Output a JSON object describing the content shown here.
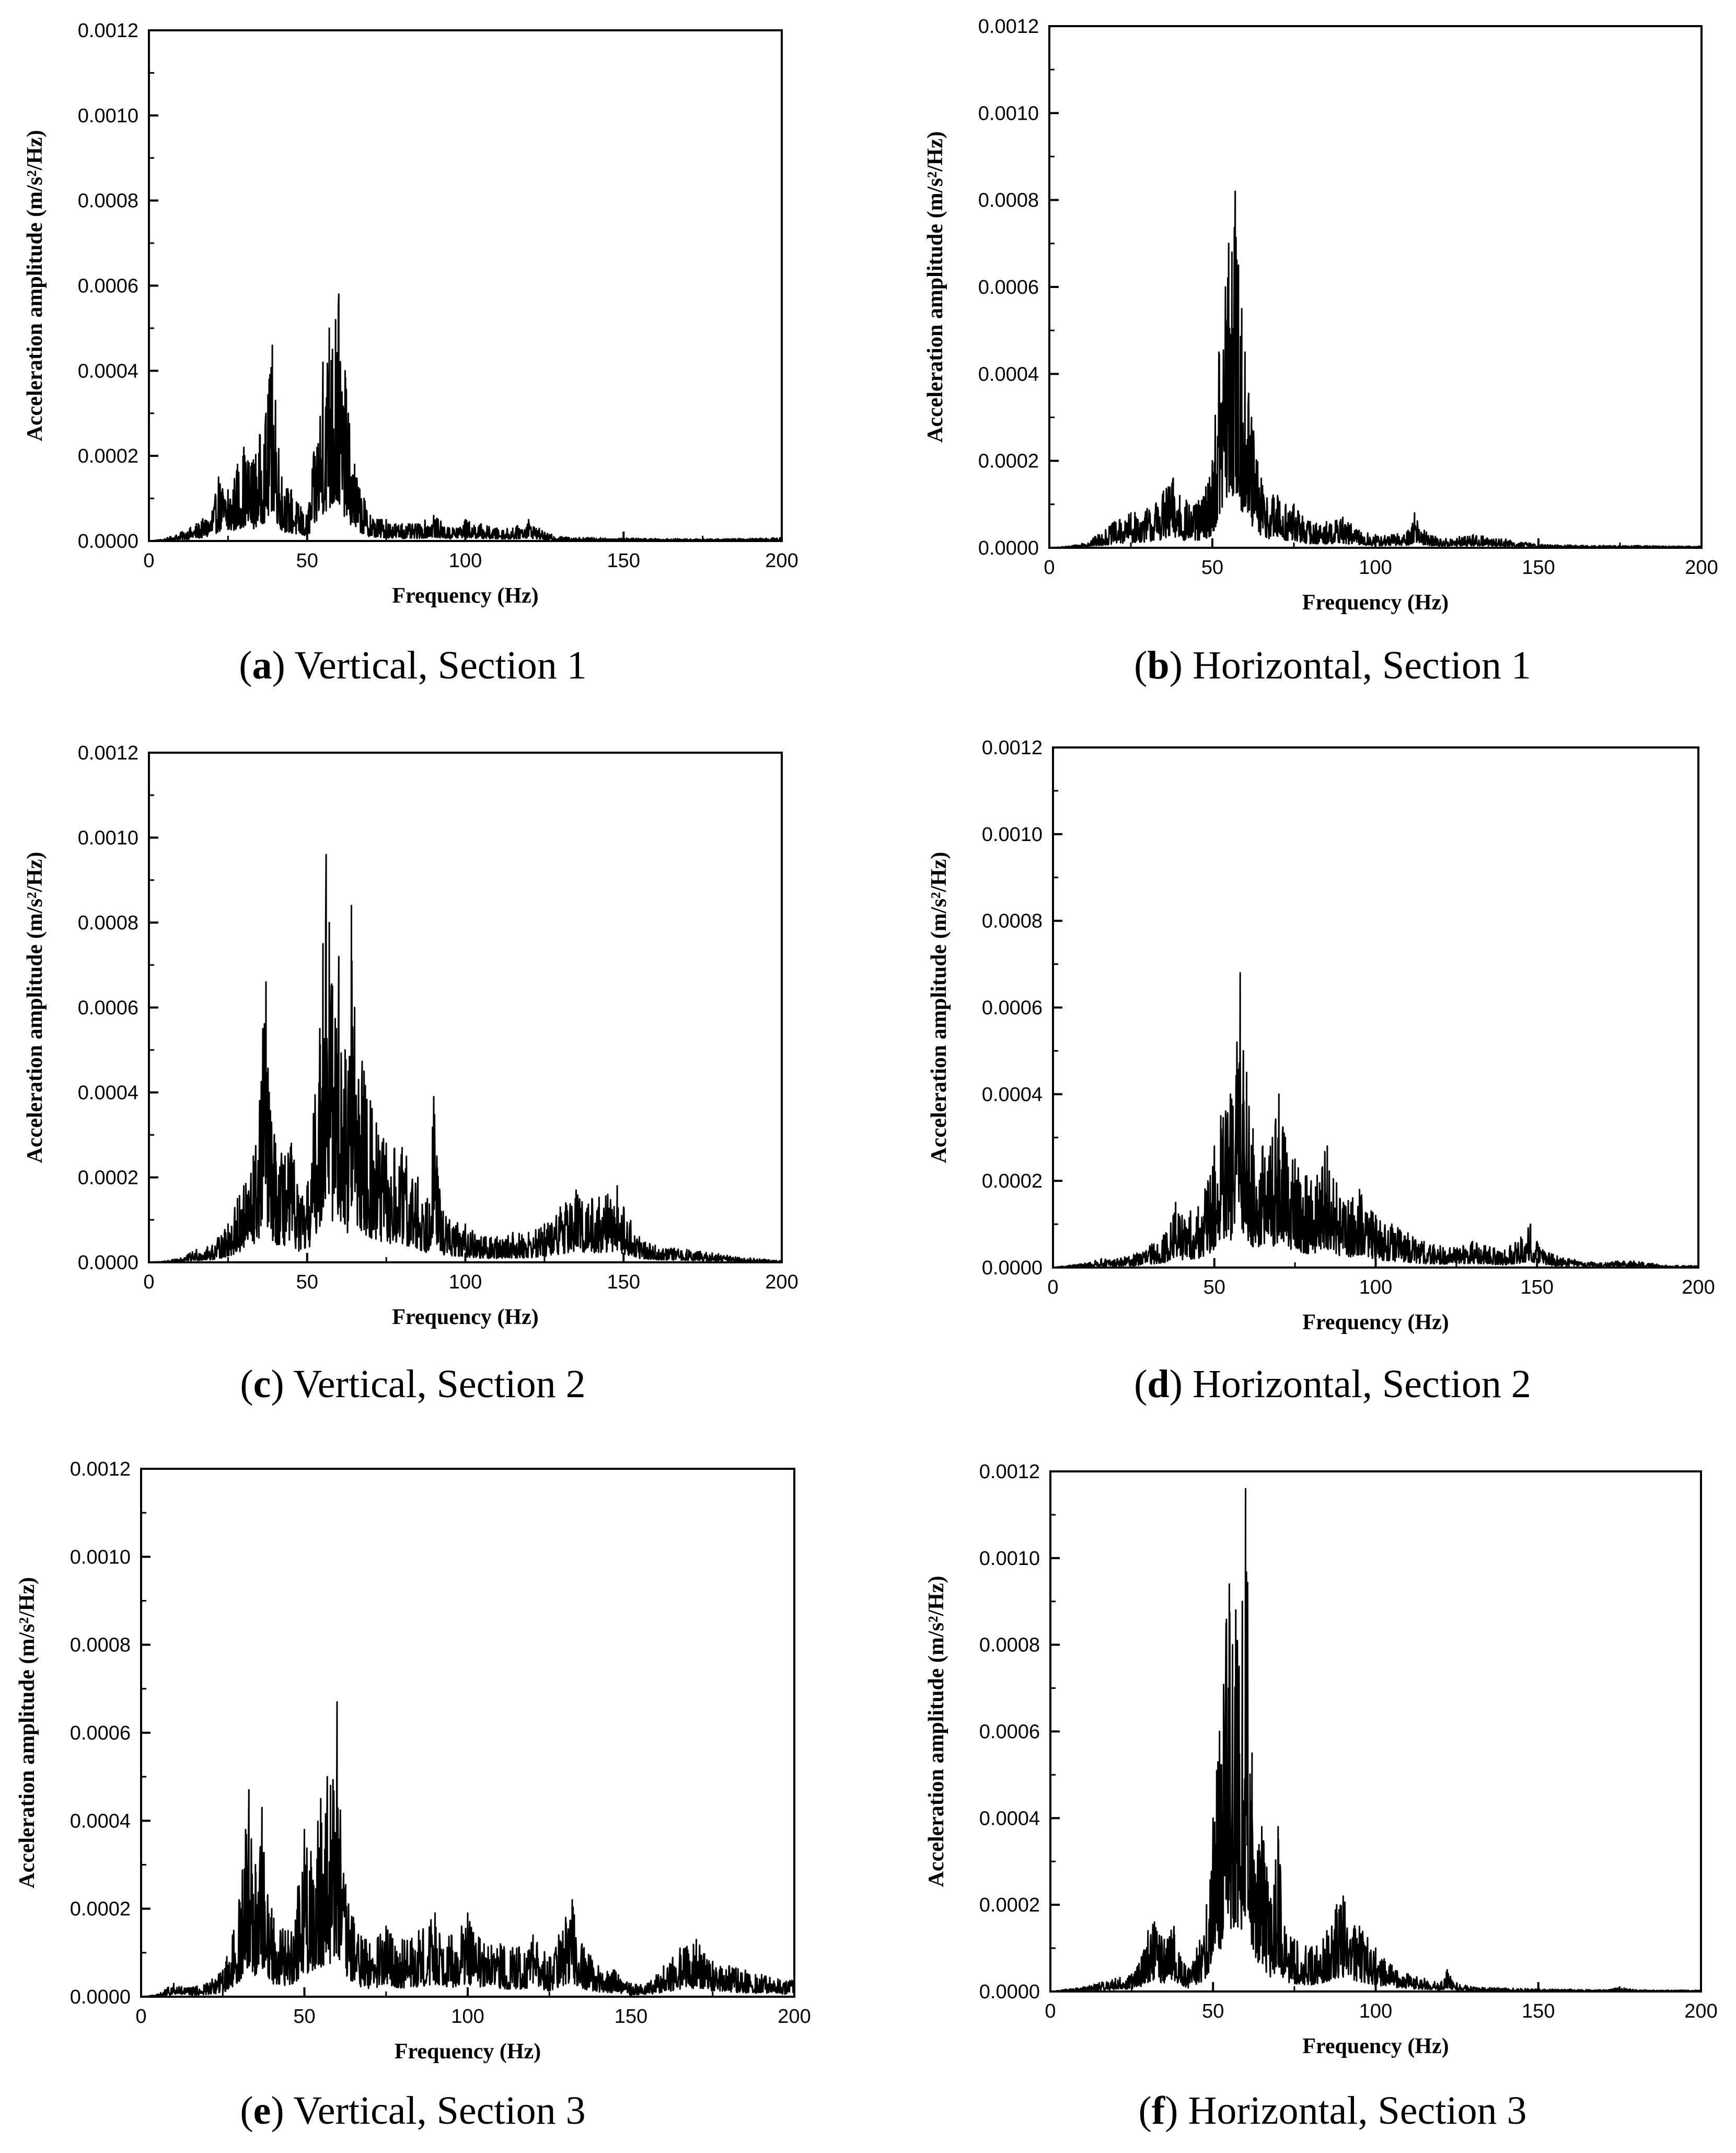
{
  "figure": {
    "panels": [
      {
        "id": "a",
        "letter": "a",
        "caption": "Vertical, Section 1",
        "xlabel": "Frequency (Hz)",
        "ylabel": "Acceleration amplitude (m/s²/Hz)",
        "xticks": [
          "0",
          "50",
          "100",
          "150",
          "200"
        ],
        "yticks": [
          "0.0000",
          "0.0002",
          "0.0004",
          "0.0006",
          "0.0008",
          "0.0010",
          "0.0012"
        ]
      },
      {
        "id": "b",
        "letter": "b",
        "caption": "Horizontal, Section 1",
        "xlabel": "Frequency (Hz)",
        "ylabel": "Acceleration amplitude (m/s²/Hz)",
        "xticks": [
          "0",
          "50",
          "100",
          "150",
          "200"
        ],
        "yticks": [
          "0.0000",
          "0.0002",
          "0.0004",
          "0.0006",
          "0.0008",
          "0.0010",
          "0.0012"
        ]
      },
      {
        "id": "c",
        "letter": "c",
        "caption": "Vertical, Section 2",
        "xlabel": "Frequency (Hz)",
        "ylabel": "Acceleration amplitude (m/s²/Hz)",
        "xticks": [
          "0",
          "50",
          "100",
          "150",
          "200"
        ],
        "yticks": [
          "0.0000",
          "0.0002",
          "0.0004",
          "0.0006",
          "0.0008",
          "0.0010",
          "0.0012"
        ]
      },
      {
        "id": "d",
        "letter": "d",
        "caption": "Horizontal, Section 2",
        "xlabel": "Frequency (Hz)",
        "ylabel": "Acceleration amplitude (m/s²/Hz)",
        "xticks": [
          "0",
          "50",
          "100",
          "150",
          "200"
        ],
        "yticks": [
          "0.0000",
          "0.0002",
          "0.0004",
          "0.0006",
          "0.0008",
          "0.0010",
          "0.0012"
        ]
      },
      {
        "id": "e",
        "letter": "e",
        "caption": "Vertical, Section 3",
        "xlabel": "Frequency (Hz)",
        "ylabel": "Acceleration amplitude (m/s²/Hz)",
        "xticks": [
          "0",
          "50",
          "100",
          "150",
          "200"
        ],
        "yticks": [
          "0.0000",
          "0.0002",
          "0.0004",
          "0.0006",
          "0.0008",
          "0.0010",
          "0.0012"
        ]
      },
      {
        "id": "f",
        "letter": "f",
        "caption": "Horizontal, Section 3",
        "xlabel": "Frequency (Hz)",
        "ylabel": "Acceleration amplitude (m/s²/Hz)",
        "xticks": [
          "0",
          "50",
          "100",
          "150",
          "200"
        ],
        "yticks": [
          "0.0000",
          "0.0002",
          "0.0004",
          "0.0006",
          "0.0008",
          "0.0010",
          "0.0012"
        ]
      }
    ]
  },
  "chart_data": [
    {
      "panel": "a",
      "type": "line",
      "xlabel": "Frequency (Hz)",
      "ylabel": "Acceleration amplitude (m/s²/Hz)",
      "xlim": [
        0,
        200
      ],
      "ylim": [
        0,
        0.0012
      ],
      "grid": false,
      "line_color": "#000000",
      "x": [
        0,
        5,
        10,
        15,
        20,
        22,
        25,
        28,
        30,
        33,
        35,
        37,
        38,
        39,
        40,
        42,
        45,
        48,
        50,
        52,
        55,
        57,
        58,
        59,
        60,
        61,
        62,
        63,
        65,
        68,
        70,
        75,
        80,
        85,
        90,
        95,
        100,
        105,
        110,
        115,
        120,
        125,
        130,
        140,
        150,
        160,
        170,
        180,
        190,
        200
      ],
      "y": [
        0,
        5e-06,
        2e-05,
        4e-05,
        7e-05,
        0.00015,
        0.00012,
        0.00018,
        0.00022,
        0.00019,
        0.00025,
        0.0003,
        0.00038,
        0.00046,
        0.00033,
        0.00015,
        0.00012,
        8e-05,
        6e-05,
        0.0002,
        0.00042,
        0.0005,
        0.00045,
        0.00052,
        0.00058,
        0.00035,
        0.0004,
        0.0003,
        0.00018,
        0.0001,
        6e-05,
        5e-05,
        4e-05,
        4e-05,
        6e-05,
        3e-05,
        5e-05,
        4e-05,
        3e-05,
        3e-05,
        5e-05,
        2e-05,
        1e-05,
        8e-06,
        7e-06,
        6e-06,
        5e-06,
        5e-06,
        6e-06,
        8e-06
      ]
    },
    {
      "panel": "b",
      "type": "line",
      "xlabel": "Frequency (Hz)",
      "ylabel": "Acceleration amplitude (m/s²/Hz)",
      "xlim": [
        0,
        200
      ],
      "ylim": [
        0,
        0.0012
      ],
      "grid": false,
      "line_color": "#000000",
      "x": [
        0,
        5,
        10,
        15,
        20,
        25,
        30,
        35,
        38,
        40,
        45,
        48,
        50,
        52,
        54,
        55,
        56,
        57,
        58,
        59,
        60,
        62,
        65,
        70,
        75,
        80,
        85,
        90,
        95,
        100,
        105,
        110,
        112,
        115,
        120,
        130,
        140,
        150,
        160,
        170,
        180,
        190,
        200
      ],
      "y": [
        0,
        3e-06,
        1e-05,
        3e-05,
        6e-05,
        8e-05,
        9e-05,
        0.00013,
        0.00016,
        0.00012,
        0.0001,
        0.00014,
        0.0002,
        0.00045,
        0.0006,
        0.0007,
        0.00068,
        0.00082,
        0.00065,
        0.00055,
        0.00045,
        0.0003,
        0.00016,
        0.00012,
        0.0001,
        6e-05,
        6e-05,
        7e-05,
        4e-05,
        3e-05,
        3e-05,
        4e-05,
        8e-05,
        4e-05,
        2e-05,
        3e-05,
        2e-05,
        8e-06,
        6e-06,
        5e-06,
        5e-06,
        4e-06,
        4e-06
      ]
    },
    {
      "panel": "c",
      "type": "line",
      "xlabel": "Frequency (Hz)",
      "ylabel": "Acceleration amplitude (m/s²/Hz)",
      "xlim": [
        0,
        200
      ],
      "ylim": [
        0,
        0.0012
      ],
      "grid": false,
      "line_color": "#000000",
      "x": [
        0,
        5,
        10,
        15,
        20,
        25,
        28,
        30,
        33,
        35,
        36,
        37,
        38,
        40,
        43,
        45,
        48,
        50,
        52,
        54,
        55,
        56,
        57,
        58,
        60,
        62,
        63,
        64,
        65,
        68,
        70,
        75,
        80,
        85,
        88,
        90,
        91,
        93,
        95,
        100,
        105,
        110,
        115,
        120,
        125,
        130,
        135,
        140,
        145,
        148,
        150,
        155,
        160,
        170,
        180,
        190,
        200
      ],
      "y": [
        0,
        3e-06,
        1e-05,
        3e-05,
        4e-05,
        9e-05,
        0.00015,
        0.00018,
        0.00025,
        0.00038,
        0.00055,
        0.00066,
        0.0004,
        0.00028,
        0.00025,
        0.00028,
        0.00015,
        0.00018,
        0.00035,
        0.00055,
        0.00075,
        0.00096,
        0.0008,
        0.00065,
        0.00072,
        0.0005,
        0.00045,
        0.00084,
        0.0006,
        0.00045,
        0.00038,
        0.00028,
        0.00027,
        0.0002,
        0.00015,
        0.00039,
        0.00025,
        0.00012,
        0.0001,
        9e-05,
        6e-05,
        6e-05,
        7e-05,
        7e-05,
        9e-05,
        0.00013,
        0.00017,
        0.00015,
        0.00016,
        0.00018,
        0.00013,
        6e-05,
        4e-05,
        3e-05,
        2e-05,
        1e-05,
        4e-06
      ]
    },
    {
      "panel": "d",
      "type": "line",
      "xlabel": "Frequency (Hz)",
      "ylabel": "Acceleration amplitude (m/s²/Hz)",
      "xlim": [
        0,
        200
      ],
      "ylim": [
        0,
        0.0012
      ],
      "grid": false,
      "line_color": "#000000",
      "x": [
        0,
        5,
        10,
        15,
        20,
        25,
        30,
        35,
        38,
        40,
        45,
        48,
        50,
        52,
        55,
        57,
        58,
        59,
        60,
        62,
        65,
        68,
        70,
        72,
        75,
        80,
        85,
        90,
        95,
        100,
        105,
        110,
        115,
        120,
        130,
        140,
        145,
        148,
        150,
        155,
        160,
        170,
        175,
        180,
        190,
        200
      ],
      "y": [
        0,
        5e-06,
        1e-05,
        2e-05,
        2e-05,
        3e-05,
        5e-05,
        8e-05,
        0.00015,
        0.00012,
        0.00014,
        0.0002,
        0.00028,
        0.00035,
        0.0004,
        0.00052,
        0.00068,
        0.0005,
        0.00045,
        0.00032,
        0.00028,
        0.0003,
        0.0004,
        0.0003,
        0.00025,
        0.0002,
        0.00028,
        0.00015,
        0.00018,
        0.00012,
        0.0001,
        8e-05,
        6e-05,
        5e-05,
        6e-05,
        4e-05,
        7e-05,
        0.0001,
        6e-05,
        3e-05,
        2e-05,
        1e-05,
        1.5e-05,
        1.5e-05,
        5e-06,
        4e-06
      ]
    },
    {
      "panel": "e",
      "type": "line",
      "xlabel": "Frequency (Hz)",
      "ylabel": "Acceleration amplitude (m/s²/Hz)",
      "xlim": [
        0,
        200
      ],
      "ylim": [
        0,
        0.0012
      ],
      "grid": false,
      "line_color": "#000000",
      "x": [
        0,
        5,
        10,
        15,
        20,
        25,
        28,
        30,
        32,
        33,
        35,
        37,
        40,
        45,
        48,
        50,
        52,
        55,
        57,
        58,
        60,
        62,
        65,
        70,
        75,
        80,
        85,
        90,
        95,
        100,
        105,
        110,
        115,
        120,
        125,
        130,
        132,
        135,
        140,
        145,
        150,
        155,
        160,
        165,
        170,
        175,
        180,
        185,
        190,
        195,
        200
      ],
      "y": [
        0,
        5e-06,
        3e-05,
        2e-05,
        3e-05,
        6e-05,
        0.00014,
        0.00022,
        0.00038,
        0.00047,
        0.0003,
        0.00043,
        0.0002,
        0.00015,
        0.00025,
        0.00038,
        0.00033,
        0.00045,
        0.0005,
        0.00048,
        0.00067,
        0.00028,
        0.00018,
        0.00012,
        0.00016,
        0.00013,
        0.00015,
        0.00019,
        0.00014,
        0.00019,
        0.00012,
        0.00012,
        0.00011,
        0.00014,
        9e-05,
        0.00018,
        0.00022,
        0.00012,
        7e-05,
        6e-05,
        3e-05,
        3e-05,
        7e-05,
        0.00011,
        0.00013,
        8e-05,
        7e-05,
        6e-05,
        5e-05,
        4e-05,
        4e-05
      ]
    },
    {
      "panel": "f",
      "type": "line",
      "xlabel": "Frequency (Hz)",
      "ylabel": "Acceleration amplitude (m/s²/Hz)",
      "xlim": [
        0,
        200
      ],
      "ylim": [
        0,
        0.0012
      ],
      "grid": false,
      "line_color": "#000000",
      "x": [
        0,
        5,
        10,
        15,
        20,
        25,
        28,
        30,
        32,
        35,
        38,
        40,
        43,
        45,
        48,
        50,
        52,
        54,
        55,
        56,
        57,
        58,
        59,
        60,
        62,
        65,
        68,
        70,
        72,
        75,
        80,
        85,
        88,
        90,
        95,
        100,
        105,
        110,
        115,
        120,
        122,
        125,
        130,
        140,
        150,
        160,
        170,
        175,
        180,
        190,
        200
      ],
      "y": [
        0,
        5e-06,
        1e-05,
        2e-05,
        3e-05,
        4e-05,
        8e-05,
        0.00014,
        0.00016,
        0.00012,
        0.00015,
        8e-05,
        5e-05,
        0.0001,
        0.0002,
        0.0004,
        0.0006,
        0.00085,
        0.00094,
        0.0008,
        0.00088,
        0.00075,
        0.0009,
        0.00116,
        0.00055,
        0.00038,
        0.0002,
        0.00038,
        0.00015,
        0.00012,
        0.0001,
        0.00014,
        0.0002,
        0.00022,
        0.00015,
        0.0001,
        6e-05,
        4e-05,
        3e-05,
        2e-05,
        5e-05,
        2e-05,
        1e-05,
        8e-06,
        6e-06,
        5e-06,
        4e-06,
        1e-05,
        4e-06,
        3e-06,
        3e-06
      ]
    }
  ]
}
